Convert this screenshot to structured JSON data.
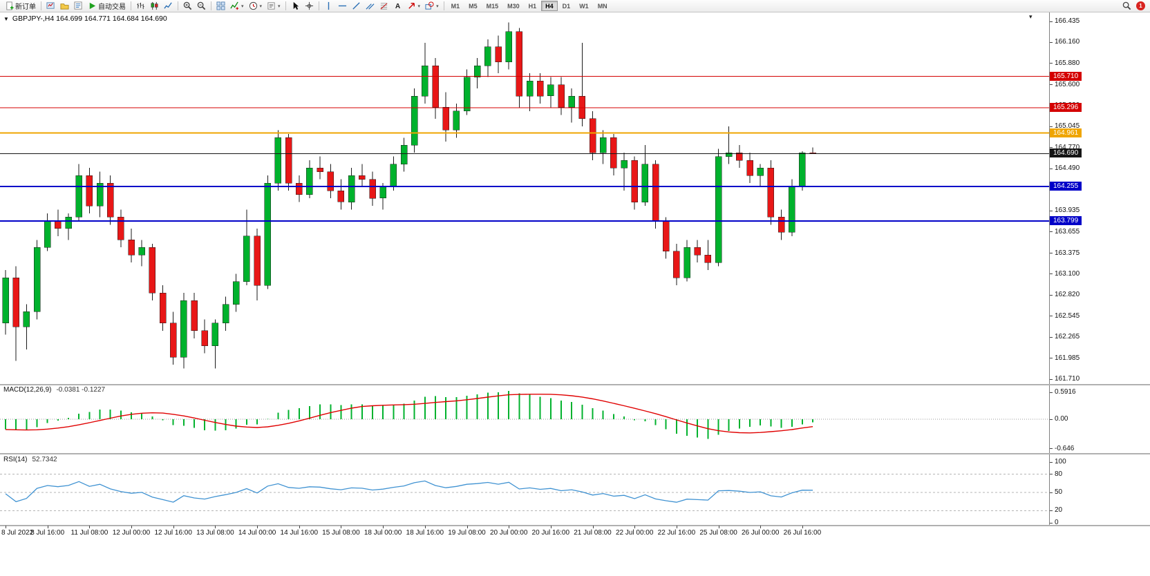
{
  "toolbar": {
    "items": [
      {
        "name": "new-order",
        "label": "新订单"
      },
      {
        "sep": true
      },
      {
        "name": "charts"
      },
      {
        "name": "profiles"
      },
      {
        "name": "market-watch"
      },
      {
        "name": "autotrading",
        "label": "自动交易"
      },
      {
        "sep": true
      },
      {
        "name": "bar-chart"
      },
      {
        "name": "candlestick-chart"
      },
      {
        "name": "line-chart"
      },
      {
        "sep": true
      },
      {
        "name": "zoom-in"
      },
      {
        "name": "zoom-out"
      },
      {
        "sep": true
      },
      {
        "name": "tile-windows"
      },
      {
        "name": "indicators",
        "dropdown": true
      },
      {
        "name": "periods",
        "dropdown": true
      },
      {
        "name": "templates",
        "dropdown": true
      },
      {
        "sep": true
      },
      {
        "name": "cursor"
      },
      {
        "name": "crosshair"
      },
      {
        "sep": true
      },
      {
        "name": "vertical-line"
      },
      {
        "name": "horizontal-line"
      },
      {
        "name": "trendline"
      },
      {
        "name": "equidistant-channel"
      },
      {
        "name": "fibonacci"
      },
      {
        "name": "text"
      },
      {
        "name": "arrows",
        "dropdown": true
      },
      {
        "name": "shapes",
        "dropdown": true
      },
      {
        "sep": true
      }
    ],
    "timeframes": [
      "M1",
      "M5",
      "M15",
      "M30",
      "H1",
      "H4",
      "D1",
      "W1",
      "MN"
    ],
    "active_timeframe": "H4",
    "notification_badge": "1"
  },
  "chart": {
    "header": "GBPJPY-,H4 164.699 164.771 164.684 164.690",
    "y_max": 166.435,
    "y_min": 161.71,
    "price_ticks": [
      "166.435",
      "166.160",
      "165.880",
      "165.600",
      "165.320",
      "165.045",
      "164.770",
      "164.490",
      "164.215",
      "163.935",
      "163.655",
      "163.375",
      "163.100",
      "162.820",
      "162.545",
      "162.265",
      "161.985",
      "161.710"
    ],
    "levels": [
      {
        "price": 165.71,
        "label": "165.710",
        "color": "#d40000",
        "width": 1
      },
      {
        "price": 165.296,
        "label": "165.296",
        "color": "#d40000",
        "width": 1
      },
      {
        "price": 164.961,
        "label": "164.961",
        "color": "#efa500",
        "width": 2
      },
      {
        "price": 164.69,
        "label": "164.690",
        "color": "#151515",
        "width": 1
      },
      {
        "price": 164.255,
        "label": "164.255",
        "color": "#0000c8",
        "width": 2
      },
      {
        "price": 163.799,
        "label": "163.799",
        "color": "#0000c8",
        "width": 2
      }
    ]
  },
  "macd": {
    "name": "MACD(12,26,9)",
    "values": "-0.0381 -0.1227",
    "y_max": 0.5916,
    "y_min": -0.646,
    "ticks": [
      "0.5916",
      "0.00",
      "-0.646"
    ]
  },
  "rsi": {
    "name": "RSI(14)",
    "value": "52.7342",
    "ticks": [
      "100",
      "80",
      "50",
      "20",
      "0"
    ],
    "levels": [
      80,
      50,
      20
    ]
  },
  "colors": {
    "up": "#00b22d",
    "down": "#e81717",
    "wick": "#1a1a1a",
    "macd_hist": "#00b22d",
    "macd_signal": "#e00000",
    "rsi_line": "#3f92d2",
    "level_red": "#d40000",
    "level_orange": "#efa500",
    "level_blue": "#0000c8",
    "level_black": "#151515"
  },
  "chart_data": {
    "type": "candlestick",
    "symbol": "GBPJPY-",
    "timeframe": "H4",
    "bars_per_label": 4,
    "x_labels": [
      "8 Jul 2022",
      "8 Jul 16:00",
      "11 Jul 08:00",
      "12 Jul 00:00",
      "12 Jul 16:00",
      "13 Jul 08:00",
      "14 Jul 00:00",
      "14 Jul 16:00",
      "15 Jul 08:00",
      "18 Jul 00:00",
      "18 Jul 16:00",
      "19 Jul 08:00",
      "20 Jul 00:00",
      "20 Jul 16:00",
      "21 Jul 08:00",
      "22 Jul 00:00",
      "22 Jul 16:00",
      "25 Jul 08:00",
      "26 Jul 00:00",
      "26 Jul 16:00"
    ],
    "ohlc": [
      [
        162.45,
        163.15,
        162.3,
        163.05
      ],
      [
        163.05,
        163.2,
        161.95,
        162.4
      ],
      [
        162.4,
        162.7,
        162.1,
        162.6
      ],
      [
        162.6,
        163.55,
        162.5,
        163.45
      ],
      [
        163.45,
        163.9,
        163.4,
        163.8
      ],
      [
        163.8,
        163.95,
        163.6,
        163.7
      ],
      [
        163.7,
        163.9,
        163.55,
        163.85
      ],
      [
        163.85,
        164.55,
        163.8,
        164.4
      ],
      [
        164.4,
        164.5,
        163.9,
        164.0
      ],
      [
        164.0,
        164.45,
        163.85,
        164.3
      ],
      [
        164.3,
        164.4,
        163.75,
        163.85
      ],
      [
        163.85,
        163.95,
        163.45,
        163.55
      ],
      [
        163.55,
        163.7,
        163.25,
        163.35
      ],
      [
        163.35,
        163.55,
        163.2,
        163.45
      ],
      [
        163.45,
        163.5,
        162.75,
        162.85
      ],
      [
        162.85,
        162.95,
        162.35,
        162.45
      ],
      [
        162.45,
        162.6,
        161.9,
        162.0
      ],
      [
        162.0,
        162.85,
        161.85,
        162.75
      ],
      [
        162.75,
        162.85,
        162.25,
        162.35
      ],
      [
        162.35,
        162.5,
        162.05,
        162.15
      ],
      [
        162.15,
        162.5,
        161.85,
        162.45
      ],
      [
        162.45,
        162.8,
        162.35,
        162.7
      ],
      [
        162.7,
        163.1,
        162.6,
        163.0
      ],
      [
        163.0,
        163.95,
        162.95,
        163.6
      ],
      [
        163.6,
        163.7,
        162.75,
        162.95
      ],
      [
        162.95,
        164.4,
        162.9,
        164.3
      ],
      [
        164.3,
        165.0,
        164.2,
        164.9
      ],
      [
        164.9,
        164.95,
        164.2,
        164.3
      ],
      [
        164.3,
        164.4,
        164.05,
        164.15
      ],
      [
        164.15,
        164.6,
        164.1,
        164.5
      ],
      [
        164.5,
        164.65,
        164.35,
        164.45
      ],
      [
        164.45,
        164.55,
        164.1,
        164.2
      ],
      [
        164.2,
        164.35,
        163.95,
        164.05
      ],
      [
        164.05,
        164.5,
        163.95,
        164.4
      ],
      [
        164.4,
        164.55,
        164.25,
        164.35
      ],
      [
        164.35,
        164.45,
        164.0,
        164.1
      ],
      [
        164.1,
        164.3,
        163.95,
        164.25
      ],
      [
        164.25,
        164.65,
        164.2,
        164.55
      ],
      [
        164.55,
        164.9,
        164.45,
        164.8
      ],
      [
        164.8,
        165.55,
        164.7,
        165.45
      ],
      [
        165.45,
        166.15,
        165.35,
        165.85
      ],
      [
        165.85,
        165.95,
        165.15,
        165.3
      ],
      [
        165.3,
        165.5,
        164.85,
        165.0
      ],
      [
        165.0,
        165.35,
        164.9,
        165.25
      ],
      [
        165.25,
        165.8,
        165.2,
        165.7
      ],
      [
        165.7,
        165.95,
        165.55,
        165.85
      ],
      [
        165.85,
        166.2,
        165.7,
        166.1
      ],
      [
        166.1,
        166.25,
        165.75,
        165.9
      ],
      [
        165.9,
        166.42,
        165.8,
        166.3
      ],
      [
        166.3,
        166.35,
        165.3,
        165.45
      ],
      [
        165.45,
        165.75,
        165.25,
        165.65
      ],
      [
        165.65,
        165.75,
        165.35,
        165.45
      ],
      [
        165.45,
        165.7,
        165.3,
        165.6
      ],
      [
        165.6,
        165.7,
        165.2,
        165.3
      ],
      [
        165.3,
        165.55,
        165.1,
        165.45
      ],
      [
        165.45,
        166.15,
        165.05,
        165.15
      ],
      [
        165.15,
        165.25,
        164.6,
        164.7
      ],
      [
        164.7,
        165.0,
        164.55,
        164.9
      ],
      [
        164.9,
        164.95,
        164.4,
        164.5
      ],
      [
        164.5,
        164.7,
        164.2,
        164.6
      ],
      [
        164.6,
        164.65,
        163.95,
        164.05
      ],
      [
        164.05,
        164.8,
        164.0,
        164.55
      ],
      [
        164.55,
        164.6,
        163.7,
        163.8
      ],
      [
        163.8,
        163.85,
        163.3,
        163.4
      ],
      [
        163.4,
        163.5,
        162.95,
        163.05
      ],
      [
        163.05,
        163.55,
        163.0,
        163.45
      ],
      [
        163.45,
        163.55,
        163.25,
        163.35
      ],
      [
        163.35,
        163.55,
        163.15,
        163.25
      ],
      [
        163.25,
        164.75,
        163.2,
        164.65
      ],
      [
        164.65,
        165.05,
        164.55,
        164.7
      ],
      [
        164.7,
        164.8,
        164.5,
        164.6
      ],
      [
        164.6,
        164.7,
        164.3,
        164.4
      ],
      [
        164.4,
        164.55,
        164.25,
        164.5
      ],
      [
        164.5,
        164.6,
        163.75,
        163.85
      ],
      [
        163.85,
        163.95,
        163.55,
        163.65
      ],
      [
        163.65,
        164.35,
        163.6,
        164.25
      ],
      [
        164.25,
        164.72,
        164.2,
        164.7
      ],
      [
        164.699,
        164.771,
        164.684,
        164.69
      ]
    ],
    "indicators": [
      {
        "type": "MACD",
        "params": [
          12,
          26,
          9
        ],
        "display": "-0.0381 -0.1227"
      },
      {
        "type": "RSI",
        "params": [
          14
        ],
        "display": "52.7342"
      }
    ]
  }
}
